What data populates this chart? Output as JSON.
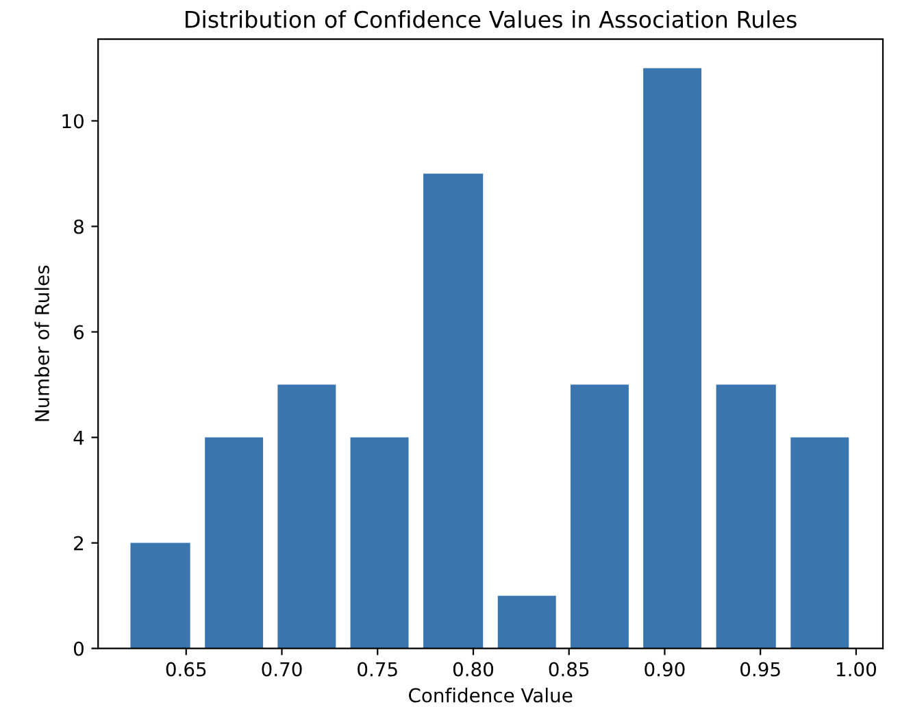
{
  "chart_data": {
    "type": "histogram",
    "title": "Distribution of Confidence Values in Association Rules",
    "xlabel": "Confidence Value",
    "ylabel": "Number of Rules",
    "bins": [
      0.617,
      0.656,
      0.694,
      0.732,
      0.77,
      0.809,
      0.847,
      0.885,
      0.923,
      0.962,
      1.0
    ],
    "values": [
      2,
      4,
      5,
      4,
      9,
      1,
      5,
      11,
      5,
      4
    ],
    "color": "#3a75af",
    "xlim": [
      0.604,
      1.014
    ],
    "xticks": [
      {
        "value": 0.65,
        "label": "0.65"
      },
      {
        "value": 0.7,
        "label": "0.70"
      },
      {
        "value": 0.75,
        "label": "0.75"
      },
      {
        "value": 0.8,
        "label": "0.80"
      },
      {
        "value": 0.85,
        "label": "0.85"
      },
      {
        "value": 0.9,
        "label": "0.90"
      },
      {
        "value": 0.95,
        "label": "0.95"
      },
      {
        "value": 1.0,
        "label": "1.00"
      }
    ],
    "ylim": [
      0,
      11.55
    ],
    "yticks": [
      0,
      2,
      4,
      6,
      8,
      10
    ],
    "grid": false
  }
}
